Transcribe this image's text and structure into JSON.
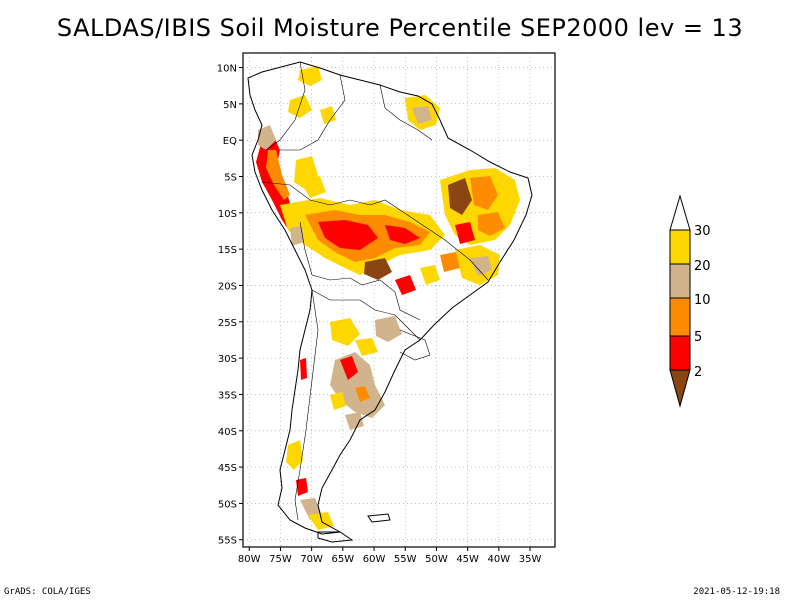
{
  "title": "SALDAS/IBIS Soil Moisture Percentile SEP2000 lev = 13",
  "footer_left": "GrADS: COLA/IGES",
  "footer_right": "2021-05-12-19:18",
  "map": {
    "lat_labels": [
      "10N",
      "5N",
      "EQ",
      "5S",
      "10S",
      "15S",
      "20S",
      "25S",
      "30S",
      "35S",
      "40S",
      "45S",
      "50S",
      "55S"
    ],
    "lat_values": [
      10,
      5,
      0,
      -5,
      -10,
      -15,
      -20,
      -25,
      -30,
      -35,
      -40,
      -45,
      -50,
      -55
    ],
    "lon_labels": [
      "80W",
      "75W",
      "70W",
      "65W",
      "60W",
      "55W",
      "50W",
      "45W",
      "40W",
      "35W"
    ],
    "lon_values": [
      -80,
      -75,
      -70,
      -65,
      -60,
      -55,
      -50,
      -45,
      -40,
      -35
    ],
    "lon_range": [
      -81,
      -31
    ],
    "lat_range": [
      -56,
      12
    ],
    "grid": true
  },
  "legend": {
    "labels": [
      "2",
      "5",
      "10",
      "20",
      "30"
    ],
    "bins": [
      {
        "color": "#8b4513"
      },
      {
        "color": "#ff0000"
      },
      {
        "color": "#ff8c00"
      },
      {
        "color": "#d2b48c"
      },
      {
        "color": "#ffd700"
      },
      {
        "color": "#ffffff"
      }
    ]
  }
}
